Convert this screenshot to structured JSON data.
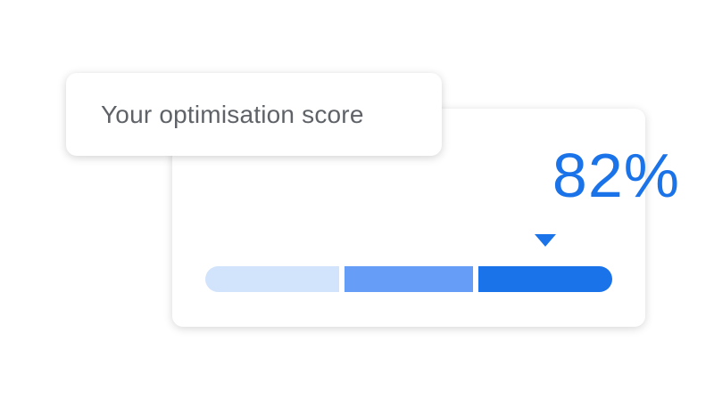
{
  "title": "Your optimisation score",
  "score": "82%",
  "score_value": 82,
  "colors": {
    "accent": "#1a73e8",
    "segment_low": "#d2e3fc",
    "segment_mid": "#669df6",
    "segment_high": "#1a73e8",
    "title_text": "#5f6368"
  },
  "segments": [
    "low",
    "medium",
    "high"
  ]
}
